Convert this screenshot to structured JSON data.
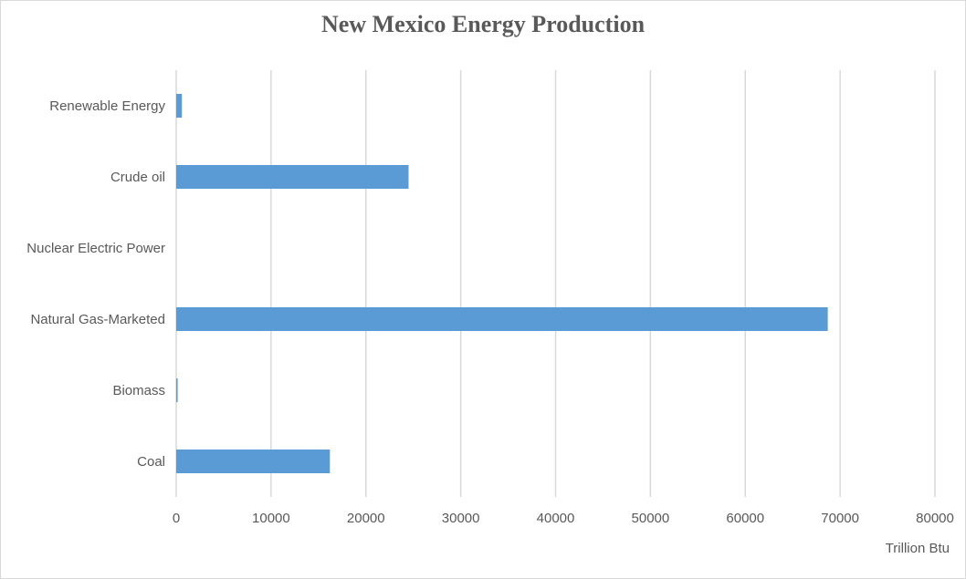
{
  "chart_data": {
    "type": "bar",
    "orientation": "horizontal",
    "title": "New Mexico Energy Production",
    "xlabel": "Trillion Btu",
    "ylabel": "",
    "categories": [
      "Coal",
      "Biomass",
      "Natural Gas-Marketed",
      "Nuclear Electric Power",
      "Crude oil",
      "Renewable Energy"
    ],
    "values": [
      16200,
      150,
      68700,
      0,
      24500,
      600
    ],
    "xlim": [
      0,
      80000
    ],
    "xticks": [
      "0",
      "10000",
      "20000",
      "30000",
      "40000",
      "50000",
      "60000",
      "70000",
      "80000"
    ],
    "grid": "vertical",
    "bar_color": "#5b9bd5",
    "grid_color": "#d9d9d9"
  }
}
